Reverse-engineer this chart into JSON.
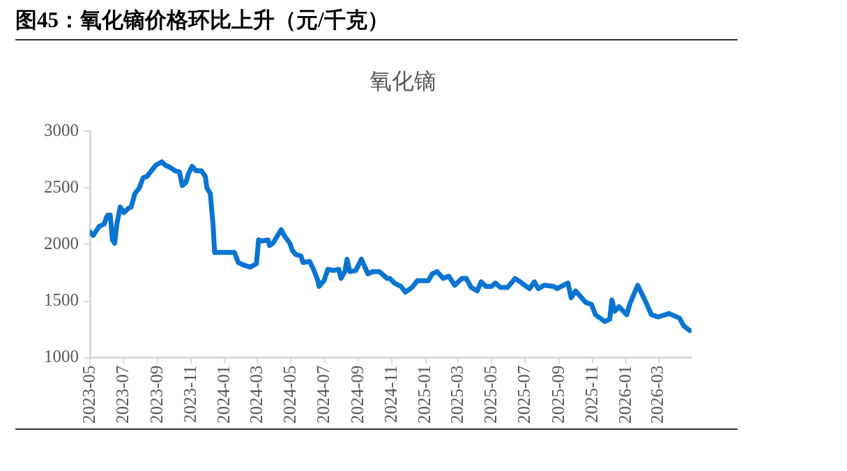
{
  "chart_data": {
    "type": "line",
    "title": "图45：氧化镝价格环比上升（元/千克）",
    "subtitle": "氧化镝",
    "x": [
      "2023-05-01",
      "2023-05-07",
      "2023-05-18",
      "2023-05-27",
      "2023-05-31",
      "2023-06-03",
      "2023-06-07",
      "2023-06-11",
      "2023-06-15",
      "2023-06-19",
      "2023-06-25",
      "2023-07-02",
      "2023-07-10",
      "2023-07-15",
      "2023-07-22",
      "2023-07-30",
      "2023-08-06",
      "2023-08-13",
      "2023-08-19",
      "2023-08-29",
      "2023-09-09",
      "2023-09-15",
      "2023-09-24",
      "2023-10-03",
      "2023-10-11",
      "2023-10-16",
      "2023-10-23",
      "2023-10-27",
      "2023-11-03",
      "2023-11-10",
      "2023-11-20",
      "2023-11-27",
      "2023-11-30",
      "2023-12-06",
      "2023-12-11",
      "2023-12-14",
      "2023-12-19",
      "2023-12-30",
      "2024-01-19",
      "2024-01-26",
      "2024-02-04",
      "2024-02-17",
      "2024-02-28",
      "2024-03-03",
      "2024-03-08",
      "2024-03-20",
      "2024-03-23",
      "2024-03-29",
      "2024-04-03",
      "2024-04-13",
      "2024-04-20",
      "2024-04-29",
      "2024-05-03",
      "2024-05-10",
      "2024-05-19",
      "2024-05-23",
      "2024-06-04",
      "2024-06-11",
      "2024-06-19",
      "2024-06-21",
      "2024-06-30",
      "2024-07-07",
      "2024-07-17",
      "2024-07-27",
      "2024-07-31",
      "2024-08-07",
      "2024-08-11",
      "2024-08-16",
      "2024-08-27",
      "2024-09-06",
      "2024-09-18",
      "2024-09-26",
      "2024-10-09",
      "2024-10-23",
      "2024-10-28",
      "2024-11-05",
      "2024-11-17",
      "2024-11-25",
      "2024-12-07",
      "2024-12-17",
      "2025-01-06",
      "2025-01-13",
      "2025-01-22",
      "2025-02-02",
      "2025-02-12",
      "2025-02-23",
      "2025-03-08",
      "2025-03-16",
      "2025-03-25",
      "2025-04-05",
      "2025-04-12",
      "2025-04-21",
      "2025-05-01",
      "2025-05-08",
      "2025-05-17",
      "2025-05-30",
      "2025-06-13",
      "2025-06-22",
      "2025-07-09",
      "2025-07-18",
      "2025-07-25",
      "2025-08-05",
      "2025-08-22",
      "2025-08-28",
      "2025-09-17",
      "2025-09-23",
      "2025-10-01",
      "2025-10-10",
      "2025-10-19",
      "2025-10-30",
      "2025-11-06",
      "2025-11-23",
      "2025-12-02",
      "2025-12-06",
      "2025-12-11",
      "2025-12-19",
      "2026-01-02",
      "2026-01-08",
      "2026-01-22",
      "2026-02-04",
      "2026-02-16",
      "2026-02-28",
      "2026-03-20",
      "2026-04-08",
      "2026-04-16",
      "2026-04-27"
    ],
    "series": [
      {
        "color": "#0a74d2",
        "values": [
          2110,
          2080,
          2160,
          2180,
          2240,
          2260,
          2260,
          2040,
          2010,
          2180,
          2330,
          2280,
          2320,
          2330,
          2450,
          2500,
          2590,
          2600,
          2640,
          2700,
          2730,
          2700,
          2680,
          2650,
          2640,
          2520,
          2550,
          2620,
          2690,
          2650,
          2650,
          2600,
          2500,
          2450,
          2180,
          1930,
          1930,
          1930,
          1930,
          1840,
          1820,
          1800,
          1830,
          2040,
          2030,
          2040,
          1990,
          2010,
          2050,
          2130,
          2070,
          2010,
          1950,
          1910,
          1900,
          1840,
          1850,
          1780,
          1680,
          1630,
          1680,
          1780,
          1770,
          1780,
          1700,
          1760,
          1870,
          1760,
          1770,
          1870,
          1740,
          1760,
          1760,
          1700,
          1700,
          1660,
          1630,
          1580,
          1620,
          1680,
          1680,
          1740,
          1760,
          1700,
          1720,
          1640,
          1700,
          1700,
          1620,
          1590,
          1670,
          1630,
          1630,
          1660,
          1620,
          1620,
          1700,
          1670,
          1610,
          1670,
          1610,
          1640,
          1630,
          1610,
          1660,
          1530,
          1590,
          1540,
          1490,
          1470,
          1380,
          1320,
          1340,
          1510,
          1410,
          1450,
          1380,
          1480,
          1640,
          1510,
          1380,
          1360,
          1390,
          1350,
          1280,
          1240
        ]
      }
    ],
    "xlim": [
      "2023-05-01",
      "2026-04-30"
    ],
    "xticks": [
      "2023-05",
      "2023-07",
      "2023-09",
      "2023-11",
      "2024-01",
      "2024-03",
      "2024-05",
      "2024-07",
      "2024-09",
      "2024-11",
      "2025-01",
      "2025-03",
      "2025-05",
      "2025-07",
      "2025-09",
      "2025-11",
      "2026-01",
      "2026-03"
    ],
    "ylim": [
      1000,
      3000
    ],
    "yticks": [
      1000,
      1500,
      2000,
      2500,
      3000
    ],
    "grid": false,
    "marker": "none"
  }
}
